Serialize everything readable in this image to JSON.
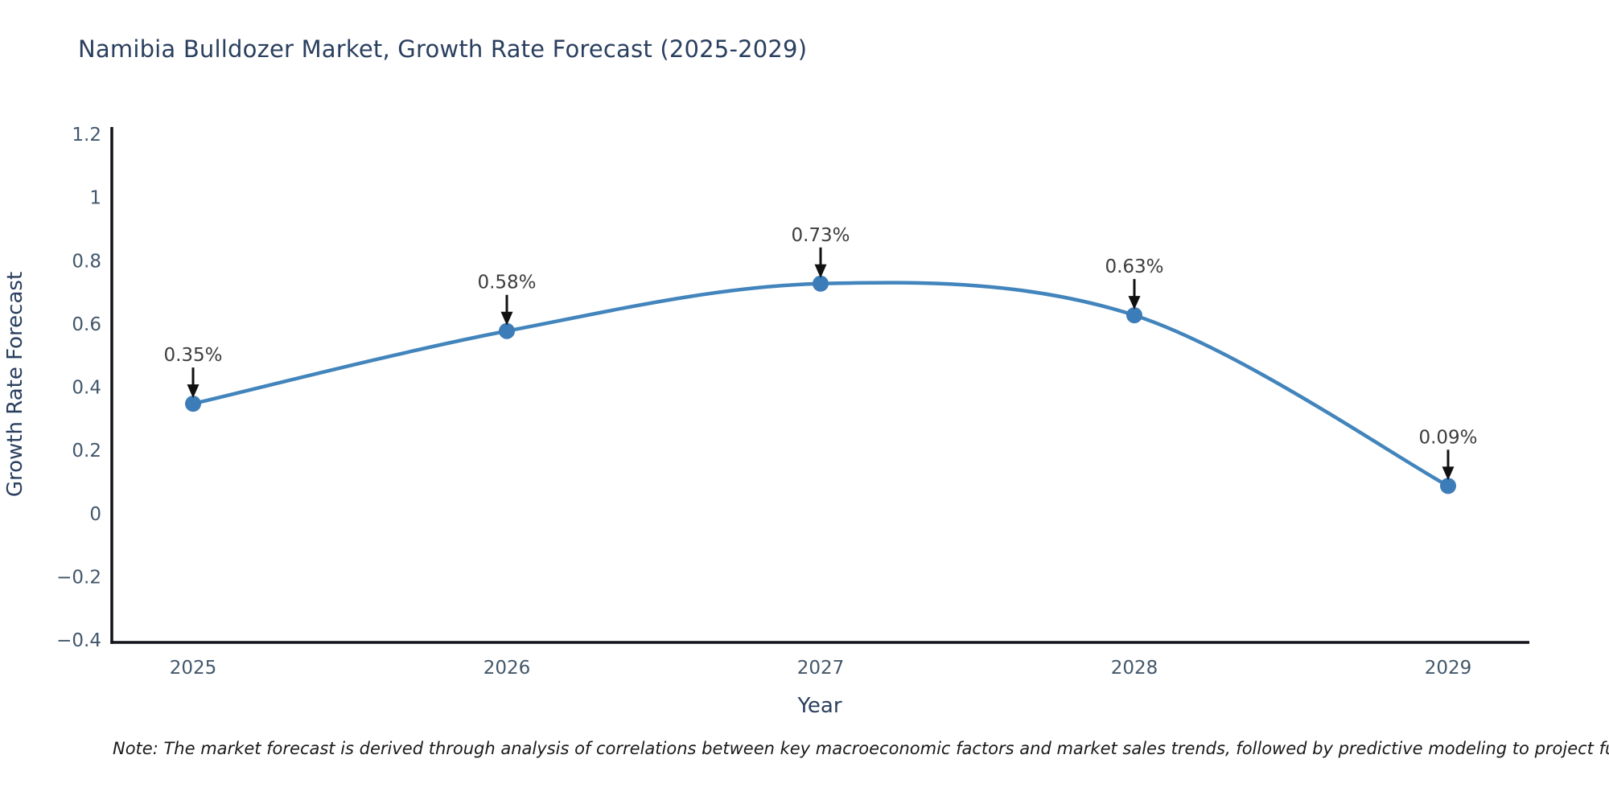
{
  "note": "Note: The market forecast is derived through analysis of correlations between key macroeconomic factors and market sales trends, followed by predictive modeling to project future sa",
  "colors": {
    "background": "#ffffff",
    "title_text": "#2a3f5f",
    "tick_text": "#42576b",
    "annotation_text": "#3d3d3d",
    "axis_line": "#10121a",
    "arrow": "#111111",
    "line": "#4284bc",
    "marker": "#3c7cb8",
    "note_text": "#1a1a1a"
  },
  "chart_data": {
    "type": "line",
    "title": "Namibia Bulldozer Market, Growth Rate Forecast (2025-2029)",
    "xlabel": "Year",
    "ylabel": "Growth Rate Forecast",
    "x": [
      2025,
      2026,
      2027,
      2028,
      2029
    ],
    "values": [
      0.35,
      0.58,
      0.73,
      0.63,
      0.09
    ],
    "series": [
      {
        "name": "Growth Rate Forecast",
        "values": [
          0.35,
          0.58,
          0.73,
          0.63,
          0.09
        ]
      }
    ],
    "point_labels": [
      "0.35%",
      "0.58%",
      "0.73%",
      "0.63%",
      "0.09%"
    ],
    "x_tick_labels": [
      "2025",
      "2026",
      "2027",
      "2028",
      "2029"
    ],
    "y_ticks": [
      {
        "label": "−0.4",
        "value": -0.4
      },
      {
        "label": "−0.2",
        "value": -0.2
      },
      {
        "label": "0",
        "value": 0
      },
      {
        "label": "0.2",
        "value": 0.2
      },
      {
        "label": "0.4",
        "value": 0.4
      },
      {
        "label": "0.6",
        "value": 0.6
      },
      {
        "label": "0.8",
        "value": 0.8
      },
      {
        "label": "1",
        "value": 1
      },
      {
        "label": "1.2",
        "value": 1.2
      }
    ],
    "ylim": [
      -0.4,
      1.2
    ],
    "grid": false,
    "legend": null,
    "line_style": "smooth-spline",
    "marker_style": "filled-circle",
    "annotation_style": "value-above-with-down-arrow"
  }
}
